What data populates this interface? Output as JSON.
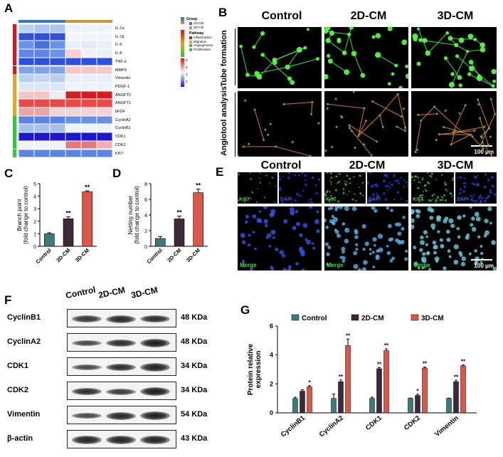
{
  "panels": {
    "A": "A",
    "B": "B",
    "C": "C",
    "D": "D",
    "E": "E",
    "F": "F",
    "G": "G"
  },
  "heatmap": {
    "genes": [
      "IL-1α",
      "IL-1β",
      "IL-6",
      "IL-8",
      "TNF-α",
      "MMP9",
      "Vimentin",
      "PDGF-1",
      "ANGPT2",
      "ANGPT1",
      "bFGF",
      "CyclinA2",
      "CyclinB1",
      "CDK1",
      "CDK2",
      "Ki67"
    ],
    "group_colors": [
      "#3a78b8",
      "#3a78b8",
      "#3a78b8",
      "#d8913a",
      "#d8913a",
      "#d8913a"
    ],
    "pathway_colors": [
      "#c0202a",
      "#c0202a",
      "#c0202a",
      "#c0202a",
      "#c0202a",
      "#c0202a",
      "#d8a63a",
      "#d8a63a",
      "#d8a63a",
      "#d8a63a",
      "#d8a63a",
      "#3fbf4a",
      "#3fbf4a",
      "#3fbf4a",
      "#3fbf4a",
      "#3fbf4a"
    ],
    "cells": [
      [
        "#b9d3f0",
        "#a8c6ee",
        "#a8c6ee",
        "#eef3fb",
        "#eef3fb",
        "#eef3fb"
      ],
      [
        "#2f52d6",
        "#2f52d6",
        "#2f52d6",
        "#f1f4fb",
        "#f1f4fb",
        "#f1f4fb"
      ],
      [
        "#6a92e6",
        "#4a6edc",
        "#6a92e6",
        "#eaf0fa",
        "#e2eaf8",
        "#eaf0fa"
      ],
      [
        "#5e86e2",
        "#5e86e2",
        "#6b90e4",
        "#f6cdd2",
        "#eef3fb",
        "#eaf0fa"
      ],
      [
        "#2f50d8",
        "#2f50d8",
        "#2f50d8",
        "#2f50d8",
        "#2f50d8",
        "#2f50d8"
      ],
      [
        "#7ea3ea",
        "#7ea3ea",
        "#7ea3ea",
        "#f5c7c9",
        "#f5c7c9",
        "#f5c7c9"
      ],
      [
        "#b7cff0",
        "#c3d7f2",
        "#b7cff0",
        "#e9eef9",
        "#e9eef9",
        "#e9eef9"
      ],
      [
        "#dbe6f7",
        "#dbe6f7",
        "#dbe6f7",
        "#eef3fb",
        "#eef3fb",
        "#eef3fb"
      ],
      [
        "#f3c5c8",
        "#f3c5c8",
        "#e8eef9",
        "#d11e21",
        "#d11e21",
        "#d11e21"
      ],
      [
        "#e84a4a",
        "#e84a4a",
        "#e84a4a",
        "#e84a4a",
        "#e84a4a",
        "#e84a4a"
      ],
      [
        "#e7a5a8",
        "#e7a5a8",
        "#f2d3d5",
        "#f3d4d6",
        "#f3d4d6",
        "#f3d4d6"
      ],
      [
        "#5b83e3",
        "#5b83e3",
        "#5b83e3",
        "#6a90e4",
        "#6a90e4",
        "#6a90e4"
      ],
      [
        "#a5c2ee",
        "#a5c2ee",
        "#a5c2ee",
        "#eef3fb",
        "#eef3fb",
        "#eef3fb"
      ],
      [
        "#1e18c6",
        "#1e18c6",
        "#1e18c6",
        "#1e18c6",
        "#1e18c6",
        "#1e18c6"
      ],
      [
        "#eef3fb",
        "#eef3fb",
        "#eef3fb",
        "#e3797c",
        "#e3797c",
        "#f4aeb1"
      ],
      [
        "#5c84e2",
        "#5c84e2",
        "#5c84e2",
        "#5c84e2",
        "#5c84e2",
        "#5c84e2"
      ]
    ],
    "legend": {
      "group_title": "Group",
      "group_items": [
        {
          "label": "2D-CM",
          "color": "#3a78b8"
        },
        {
          "label": "3D-CM",
          "color": "#d8913a"
        }
      ],
      "pathway_title": "Pathway",
      "pathway_items": [
        {
          "label": "Inflammation",
          "color": "#c0202a"
        },
        {
          "label": "Migration",
          "color": "#d8a63a"
        },
        {
          "label": "Angiogenesis",
          "color": "#3fbf4a"
        },
        {
          "label": "Proliferation",
          "color": "#3fbf4a"
        }
      ],
      "scale_ticks": [
        "8",
        "6",
        "4",
        "2"
      ]
    }
  },
  "panelB": {
    "columns": [
      "Control",
      "2D-CM",
      "3D-CM"
    ],
    "rows": [
      "Tube formation",
      "Angiotool analysis"
    ],
    "scale_bar": "100 μm"
  },
  "panelE": {
    "columns": [
      "Control",
      "2D-CM",
      "3D-CM"
    ],
    "stain1": "Ki67",
    "stain2": "DAPI",
    "merge": "Merge",
    "scale_bar": "100 μm"
  },
  "chart_data": [
    {
      "type": "bar",
      "panel": "C",
      "categories": [
        "Control",
        "2D-CM",
        "3D-CM"
      ],
      "values": [
        1.0,
        2.2,
        4.35
      ],
      "errors": [
        0.08,
        0.15,
        0.08
      ],
      "significance": [
        "",
        "**",
        "**"
      ],
      "colors": [
        "#3f7a78",
        "#3c2a3a",
        "#d8574a"
      ],
      "ylabel": "Branch point\n(fold change to control)",
      "ylim": [
        0,
        5
      ],
      "yticks": [
        "0",
        "1",
        "2",
        "3",
        "4",
        "5"
      ]
    },
    {
      "type": "bar",
      "panel": "D",
      "categories": [
        "Control",
        "2D-CM",
        "3D-CM"
      ],
      "values": [
        1.0,
        3.5,
        6.85
      ],
      "errors": [
        0.25,
        0.35,
        0.45
      ],
      "significance": [
        "",
        "**",
        "**"
      ],
      "colors": [
        "#3f7a78",
        "#3c2a3a",
        "#d8574a"
      ],
      "ylabel": "Netting number\n(fold change to control)",
      "ylim": [
        0,
        8
      ],
      "yticks": [
        "0",
        "2",
        "4",
        "6",
        "8"
      ]
    },
    {
      "type": "bar",
      "panel": "G",
      "categories": [
        "CyclinB1",
        "CyclinA2",
        "CDK1",
        "CDK2",
        "Vimentin"
      ],
      "series": [
        {
          "name": "Control",
          "values": [
            1.0,
            1.0,
            1.0,
            1.0,
            1.0
          ],
          "errors": [
            0.08,
            0.3,
            0.08,
            0.02,
            0.02
          ],
          "color": "#3f7a78",
          "sig": [
            "",
            "",
            "",
            "",
            ""
          ]
        },
        {
          "name": "2D-CM",
          "values": [
            1.5,
            2.15,
            3.05,
            1.2,
            2.15
          ],
          "errors": [
            0.1,
            0.12,
            0.08,
            0.08,
            0.1
          ],
          "color": "#3c2a3a",
          "sig": [
            "",
            "**",
            "**",
            "*",
            "**"
          ]
        },
        {
          "name": "3D-CM",
          "values": [
            1.8,
            4.65,
            4.3,
            3.1,
            3.25
          ],
          "errors": [
            0.08,
            0.45,
            0.12,
            0.06,
            0.06
          ],
          "color": "#d8574a",
          "sig": [
            "*",
            "**",
            "**",
            "**",
            "**"
          ]
        }
      ],
      "ylabel": "Protein relative\nexpression",
      "ylim": [
        0,
        6
      ],
      "yticks": [
        "0",
        "2",
        "4",
        "6"
      ],
      "legend": "top"
    }
  ],
  "western": {
    "lanes": [
      "Control",
      "2D-CM",
      "3D-CM"
    ],
    "rows": [
      {
        "label": "CyclinB1",
        "kda": "48 KDa"
      },
      {
        "label": "CyclinA2",
        "kda": "48 KDa"
      },
      {
        "label": "CDK1",
        "kda": "34 KDa"
      },
      {
        "label": "CDK2",
        "kda": "34 KDa"
      },
      {
        "label": "Vimentin",
        "kda": "54 KDa"
      },
      {
        "label": "β-actin",
        "kda": "43 KDa"
      }
    ],
    "band_strength": [
      [
        0.75,
        0.9,
        0.85
      ],
      [
        0.55,
        0.85,
        1.0
      ],
      [
        0.55,
        0.85,
        0.95
      ],
      [
        0.85,
        0.7,
        1.0
      ],
      [
        0.55,
        0.9,
        1.0
      ],
      [
        0.95,
        0.95,
        0.95
      ]
    ]
  }
}
